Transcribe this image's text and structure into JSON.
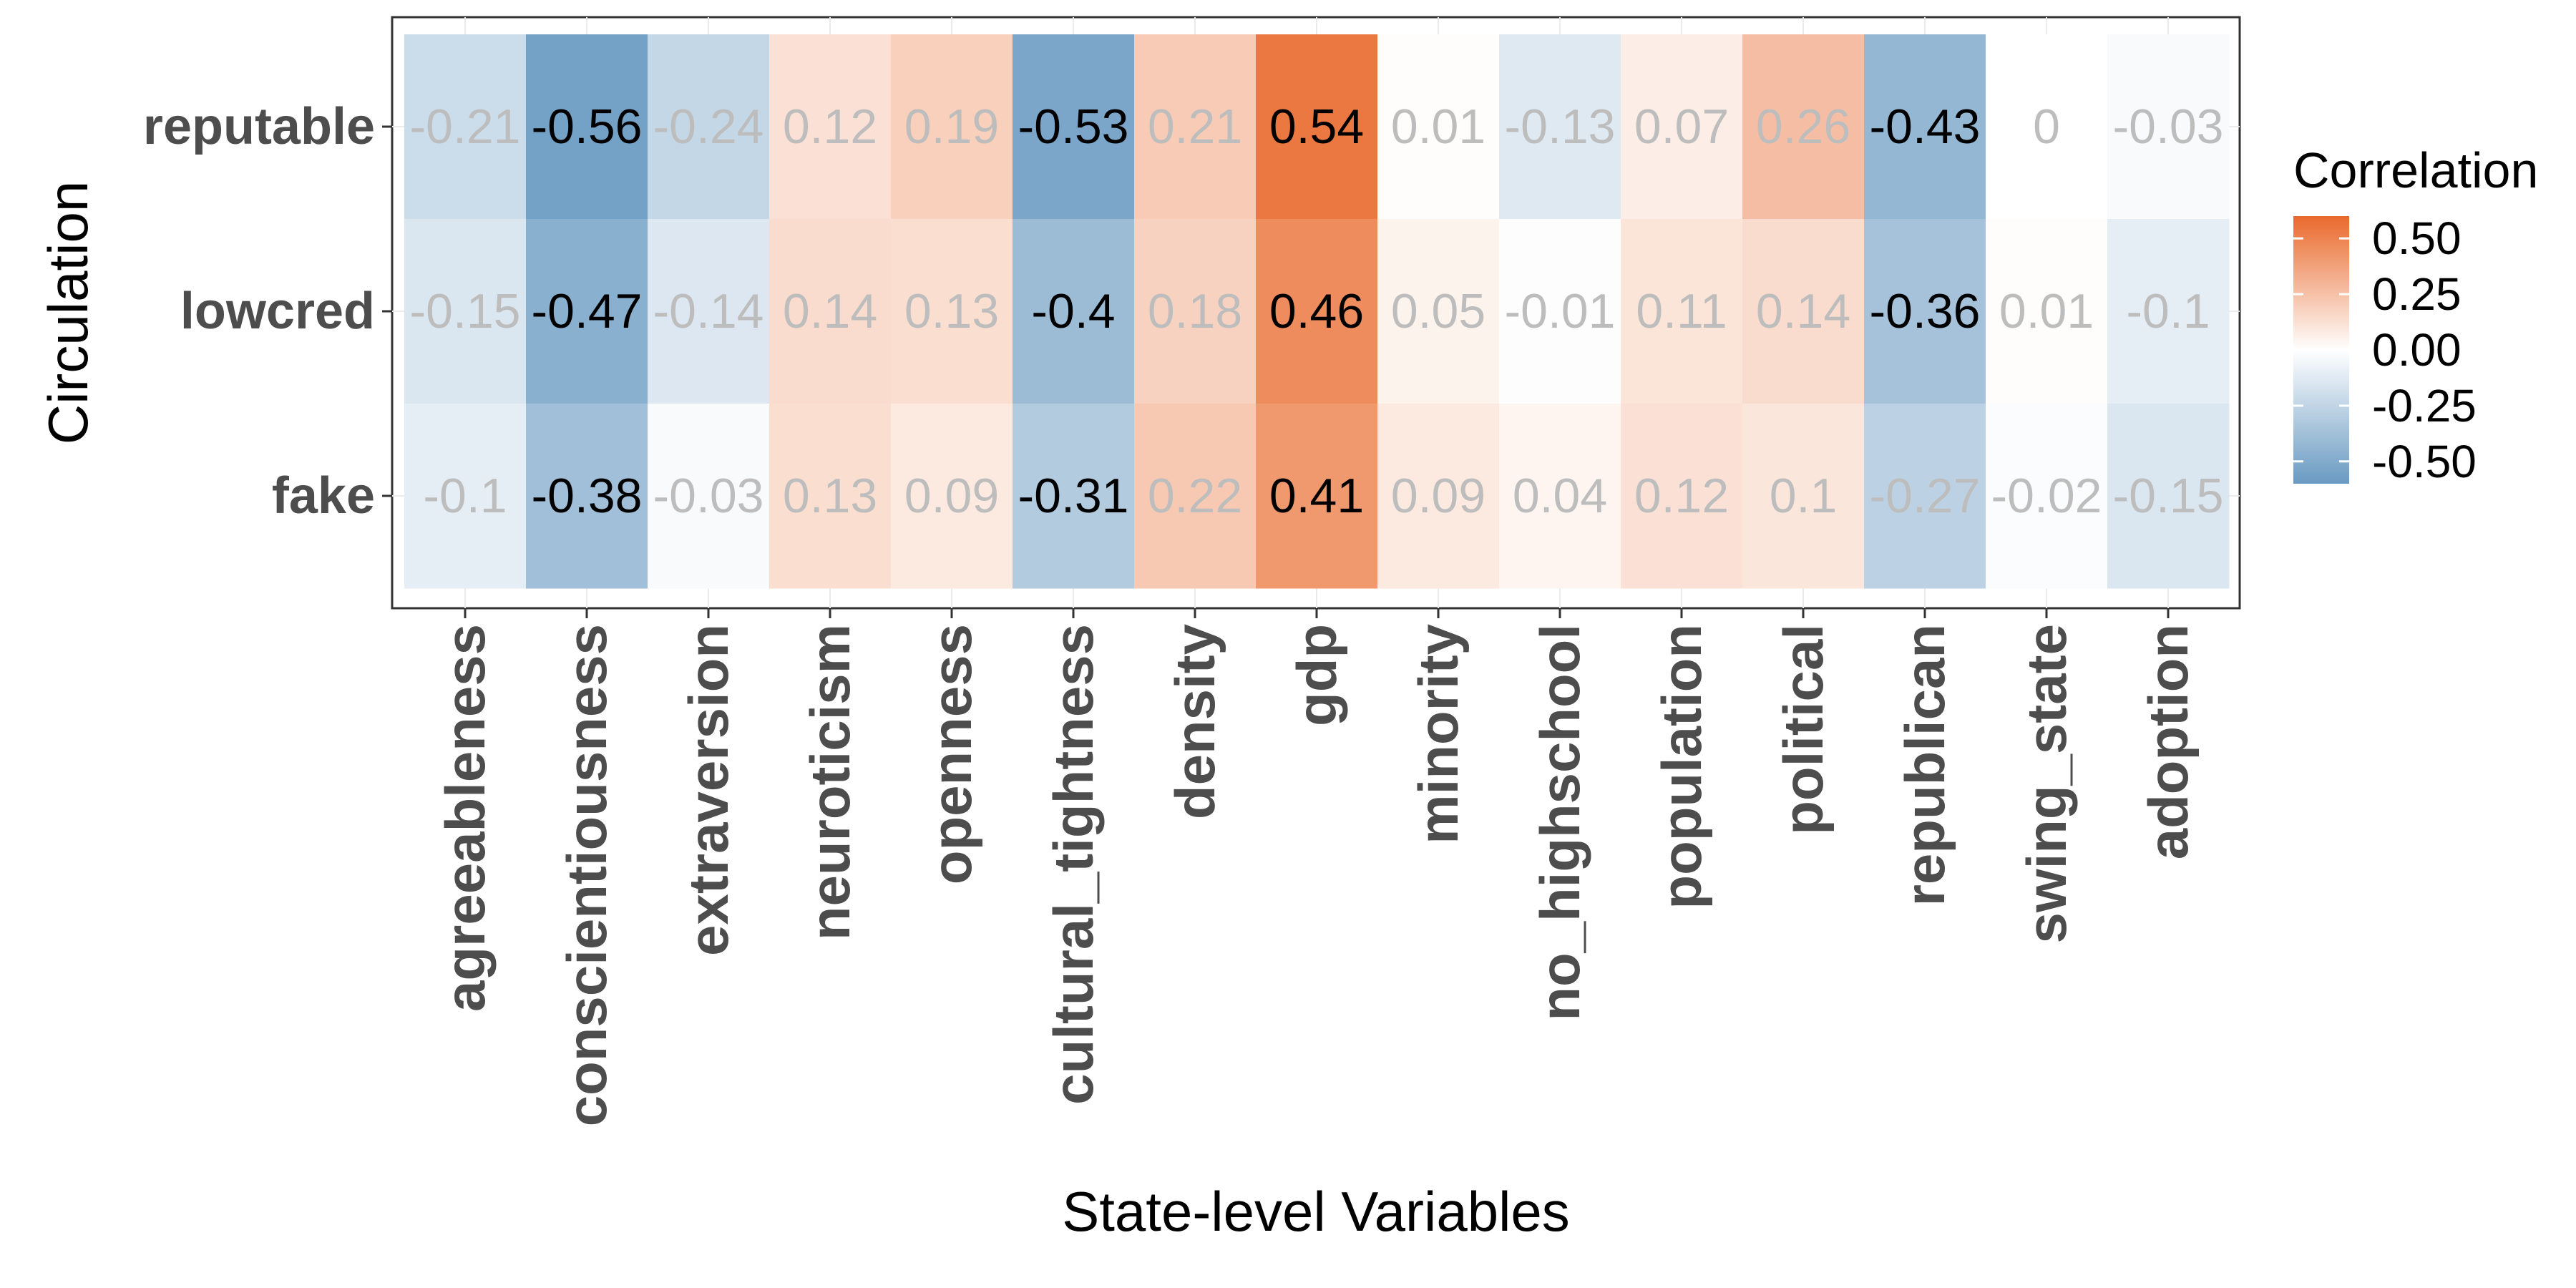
{
  "chart_data": {
    "type": "heatmap",
    "xlabel": "State-level Variables",
    "ylabel": "Circulation",
    "x_categories": [
      "agreeableness",
      "conscientiousness",
      "extraversion",
      "neuroticism",
      "openness",
      "cultural_tightness",
      "density",
      "gdp",
      "minority",
      "no_highschool",
      "population",
      "political",
      "republican",
      "swing_state",
      "adoption"
    ],
    "y_categories": [
      "reputable",
      "lowcred",
      "fake"
    ],
    "values": [
      [
        -0.21,
        -0.56,
        -0.24,
        0.12,
        0.19,
        -0.53,
        0.21,
        0.54,
        0.01,
        -0.13,
        0.07,
        0.26,
        -0.43,
        0,
        -0.03
      ],
      [
        -0.15,
        -0.47,
        -0.14,
        0.14,
        0.13,
        -0.4,
        0.18,
        0.46,
        0.05,
        -0.01,
        0.11,
        0.14,
        -0.36,
        0.01,
        -0.1
      ],
      [
        -0.1,
        -0.38,
        -0.03,
        0.13,
        0.09,
        -0.31,
        0.22,
        0.41,
        0.09,
        0.04,
        0.12,
        0.1,
        -0.27,
        -0.02,
        -0.15
      ]
    ],
    "value_labels": [
      [
        "-0.21",
        "-0.56",
        "-0.24",
        "0.12",
        "0.19",
        "-0.53",
        "0.21",
        "0.54",
        "0.01",
        "-0.13",
        "0.07",
        "0.26",
        "-0.43",
        "0",
        "-0.03"
      ],
      [
        "-0.15",
        "-0.47",
        "-0.14",
        "0.14",
        "0.13",
        "-0.4",
        "0.18",
        "0.46",
        "0.05",
        "-0.01",
        "0.11",
        "0.14",
        "-0.36",
        "0.01",
        "-0.1"
      ],
      [
        "-0.1",
        "-0.38",
        "-0.03",
        "0.13",
        "0.09",
        "-0.31",
        "0.22",
        "0.41",
        "0.09",
        "0.04",
        "0.12",
        "0.1",
        "-0.27",
        "-0.02",
        "-0.15"
      ]
    ],
    "significance": [
      [
        false,
        true,
        false,
        false,
        false,
        true,
        false,
        true,
        false,
        false,
        false,
        false,
        true,
        false,
        false
      ],
      [
        false,
        true,
        false,
        false,
        false,
        true,
        false,
        true,
        false,
        false,
        false,
        false,
        true,
        false,
        false
      ],
      [
        false,
        true,
        false,
        false,
        false,
        true,
        false,
        true,
        false,
        false,
        false,
        false,
        false,
        false,
        false
      ]
    ],
    "legend": {
      "title": "Correlation",
      "breaks": [
        0.5,
        0.25,
        0,
        -0.25,
        -0.5
      ],
      "labels": [
        "0.50",
        "0.25",
        "0.00",
        "-0.25",
        "-0.50"
      ],
      "range": [
        -0.6,
        0.6
      ]
    },
    "colors": {
      "low": "#6a9ac2",
      "mid": "#ffffff",
      "high": "#e9692c",
      "significant_text": "#000000",
      "insignificant_text": "#bdbdbd"
    }
  }
}
